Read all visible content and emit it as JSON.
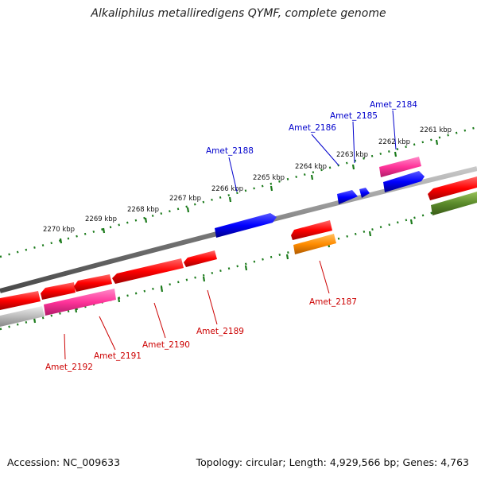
{
  "title": "Alkaliphilus metalliredigens QYMF, complete genome",
  "footer": {
    "accession": "Accession: NC_009633",
    "info": "Topology: circular; Length: 4,929,566 bp; Genes: 4,763"
  },
  "ticks": [
    "2270 kbp",
    "2269 kbp",
    "2268 kbp",
    "2267 kbp",
    "2266 kbp",
    "2265 kbp",
    "2264 kbp",
    "2263 kbp",
    "2262 kbp",
    "2261 kbp"
  ],
  "labels_top": [
    "Amet_2188",
    "Amet_2186",
    "Amet_2185",
    "Amet_2184"
  ],
  "labels_bottom": [
    "Amet_2192",
    "Amet_2191",
    "Amet_2190",
    "Amet_2189",
    "Amet_2187"
  ],
  "colors": {
    "cds": "#ff0000",
    "pink": "#ff3399",
    "blue": "#0000ff",
    "orange": "#ff8c00",
    "olive": "#5a8a2a",
    "gray": "#bbbbbb",
    "backbone": "#808080",
    "tick": "#1a7a1a",
    "label_top": "#0000cc",
    "label_bottom": "#cc0000"
  }
}
